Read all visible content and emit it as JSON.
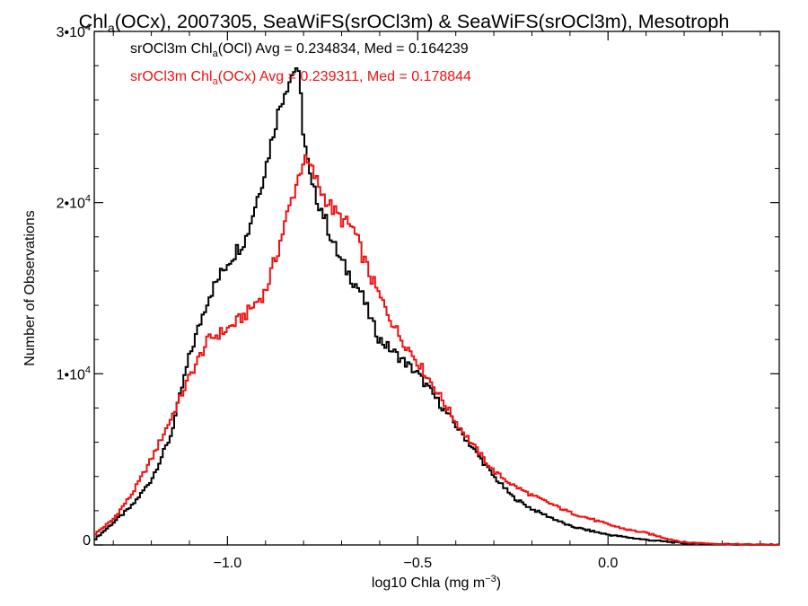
{
  "chart_data": {
    "type": "line",
    "title": {
      "prefix": "Chl",
      "sub": "a",
      "rest": "(OCx), 2007305, SeaWiFS(srOCl3m) & SeaWiFS(srOCl3m), Mesotroph"
    },
    "xlabel": {
      "main": "log10 Chla (mg m",
      "sup": "−3",
      "close": ")"
    },
    "ylabel": "Number of Observations",
    "xlim": [
      -1.35,
      0.45
    ],
    "ylim": [
      0,
      30000
    ],
    "xticks": [
      {
        "value": -1.0,
        "label": "−1.0"
      },
      {
        "value": -0.5,
        "label": "−0.5"
      },
      {
        "value": 0.0,
        "label": "0.0"
      }
    ],
    "yticks": [
      {
        "value": 0,
        "mant": "0",
        "exp": ""
      },
      {
        "value": 10000,
        "mant": "1•10",
        "exp": "4"
      },
      {
        "value": 20000,
        "mant": "2•10",
        "exp": "4"
      },
      {
        "value": 30000,
        "mant": "3•10",
        "exp": "4"
      }
    ],
    "grid": false,
    "legend": [
      {
        "pre": "srOCl3m Chl",
        "sub": "a",
        "post": "(OCl) Avg = 0.234834, Med = 0.164239",
        "color": "#000000"
      },
      {
        "pre": "srOCl3m Chl",
        "sub": "a",
        "post": "(OCx) Avg = 0.239311, Med = 0.178844",
        "color": "#ee1111"
      }
    ],
    "series": [
      {
        "name": "srOCl3m Chla(OCl)",
        "color": "#000000",
        "points": [
          [
            -1.35,
            300
          ],
          [
            -1.3,
            1300
          ],
          [
            -1.25,
            2300
          ],
          [
            -1.2,
            3800
          ],
          [
            -1.15,
            6300
          ],
          [
            -1.1,
            11000
          ],
          [
            -1.05,
            14500
          ],
          [
            -1.0,
            16500
          ],
          [
            -0.95,
            18000
          ],
          [
            -0.9,
            22000
          ],
          [
            -0.87,
            25000
          ],
          [
            -0.85,
            26500
          ],
          [
            -0.83,
            27500
          ],
          [
            -0.82,
            28000
          ],
          [
            -0.81,
            27000
          ],
          [
            -0.8,
            24000
          ],
          [
            -0.78,
            21000
          ],
          [
            -0.75,
            19500
          ],
          [
            -0.72,
            17500
          ],
          [
            -0.7,
            16500
          ],
          [
            -0.65,
            14800
          ],
          [
            -0.62,
            13000
          ],
          [
            -0.6,
            12000
          ],
          [
            -0.55,
            11000
          ],
          [
            -0.5,
            10000
          ],
          [
            -0.45,
            8500
          ],
          [
            -0.4,
            7000
          ],
          [
            -0.35,
            5500
          ],
          [
            -0.3,
            4000
          ],
          [
            -0.25,
            2800
          ],
          [
            -0.2,
            2100
          ],
          [
            -0.1,
            1100
          ],
          [
            0.0,
            600
          ],
          [
            0.1,
            300
          ],
          [
            0.2,
            100
          ],
          [
            0.3,
            50
          ],
          [
            0.45,
            0
          ]
        ]
      },
      {
        "name": "srOCl3m Chla(OCx)",
        "color": "#ee1111",
        "points": [
          [
            -1.35,
            600
          ],
          [
            -1.3,
            1500
          ],
          [
            -1.25,
            3000
          ],
          [
            -1.2,
            5000
          ],
          [
            -1.15,
            7300
          ],
          [
            -1.1,
            9800
          ],
          [
            -1.05,
            12000
          ],
          [
            -1.0,
            12600
          ],
          [
            -0.95,
            13500
          ],
          [
            -0.9,
            14800
          ],
          [
            -0.87,
            17000
          ],
          [
            -0.84,
            19500
          ],
          [
            -0.82,
            21000
          ],
          [
            -0.8,
            22500
          ],
          [
            -0.78,
            22000
          ],
          [
            -0.75,
            20500
          ],
          [
            -0.72,
            19500
          ],
          [
            -0.7,
            19000
          ],
          [
            -0.67,
            18500
          ],
          [
            -0.63,
            16000
          ],
          [
            -0.6,
            14500
          ],
          [
            -0.55,
            12300
          ],
          [
            -0.5,
            10700
          ],
          [
            -0.45,
            9000
          ],
          [
            -0.4,
            7200
          ],
          [
            -0.35,
            5700
          ],
          [
            -0.3,
            4300
          ],
          [
            -0.25,
            3500
          ],
          [
            -0.2,
            2900
          ],
          [
            -0.1,
            1900
          ],
          [
            0.0,
            1200
          ],
          [
            0.05,
            900
          ],
          [
            0.1,
            700
          ],
          [
            0.15,
            400
          ],
          [
            0.2,
            150
          ],
          [
            0.3,
            60
          ],
          [
            0.45,
            0
          ]
        ]
      }
    ]
  }
}
